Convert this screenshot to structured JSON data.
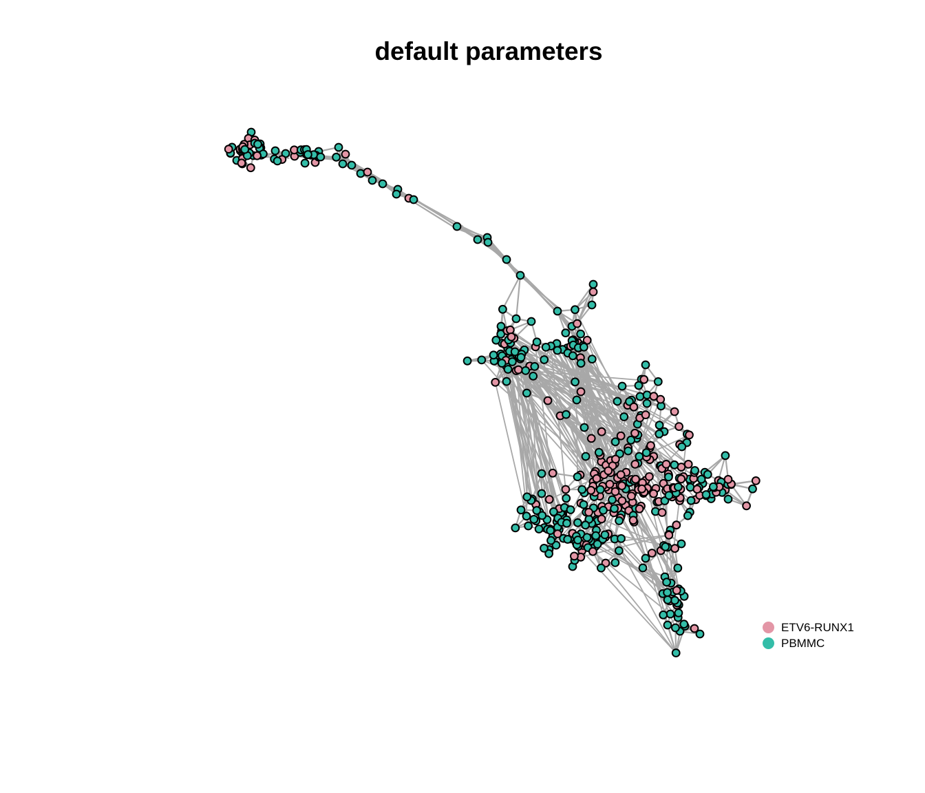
{
  "title": "default parameters",
  "colors": {
    "edge": "#a8a8a8",
    "node_stroke": "#000000",
    "ETV6-RUNX1": "#e396a6",
    "PBMMC": "#33bda8"
  },
  "legend": {
    "items": [
      {
        "label": "ETV6-RUNX1",
        "color": "#e396a6"
      },
      {
        "label": "PBMMC",
        "color": "#33bda8"
      }
    ]
  }
}
